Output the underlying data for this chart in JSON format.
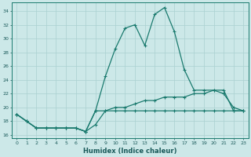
{
  "xlabel": "Humidex (Indice chaleur)",
  "background_color": "#cce8e8",
  "grid_color": "#aad0d0",
  "line_color": "#1a7a6e",
  "xlim": [
    -0.5,
    23.5
  ],
  "ylim": [
    15.5,
    35.2
  ],
  "yticks": [
    16,
    18,
    20,
    22,
    24,
    26,
    28,
    30,
    32,
    34
  ],
  "xticks": [
    0,
    1,
    2,
    3,
    4,
    5,
    6,
    7,
    8,
    9,
    10,
    11,
    12,
    13,
    14,
    15,
    16,
    17,
    18,
    19,
    20,
    21,
    22,
    23
  ],
  "line1_x": [
    0,
    1,
    2,
    3,
    4,
    5,
    6,
    7,
    8,
    9,
    10,
    11,
    12,
    13,
    14,
    15,
    16,
    17,
    18,
    19,
    20,
    21,
    22,
    23
  ],
  "line1_y": [
    19.0,
    18.0,
    17.0,
    17.0,
    17.0,
    17.0,
    17.0,
    16.5,
    19.5,
    19.5,
    19.5,
    19.5,
    19.5,
    19.5,
    19.5,
    19.5,
    19.5,
    19.5,
    19.5,
    19.5,
    19.5,
    19.5,
    19.5,
    19.5
  ],
  "line2_x": [
    0,
    1,
    2,
    3,
    4,
    5,
    6,
    7,
    8,
    9,
    10,
    11,
    12,
    13,
    14,
    15,
    16,
    17,
    18,
    19,
    20,
    21,
    22,
    23
  ],
  "line2_y": [
    19.0,
    18.0,
    17.0,
    17.0,
    17.0,
    17.0,
    17.0,
    16.5,
    17.5,
    19.5,
    20.0,
    20.0,
    20.5,
    21.0,
    21.0,
    21.5,
    21.5,
    21.5,
    22.0,
    22.0,
    22.5,
    22.5,
    19.5,
    19.5
  ],
  "line3_x": [
    0,
    1,
    2,
    3,
    4,
    5,
    6,
    7,
    8,
    9,
    10,
    11,
    12,
    13,
    14,
    15,
    16,
    17,
    18,
    19,
    20,
    21,
    22,
    23
  ],
  "line3_y": [
    19.0,
    18.0,
    17.0,
    17.0,
    17.0,
    17.0,
    17.0,
    16.5,
    19.5,
    24.5,
    28.5,
    31.5,
    32.0,
    29.0,
    33.5,
    34.5,
    31.0,
    25.5,
    22.5,
    22.5,
    22.5,
    22.0,
    20.0,
    19.5
  ]
}
